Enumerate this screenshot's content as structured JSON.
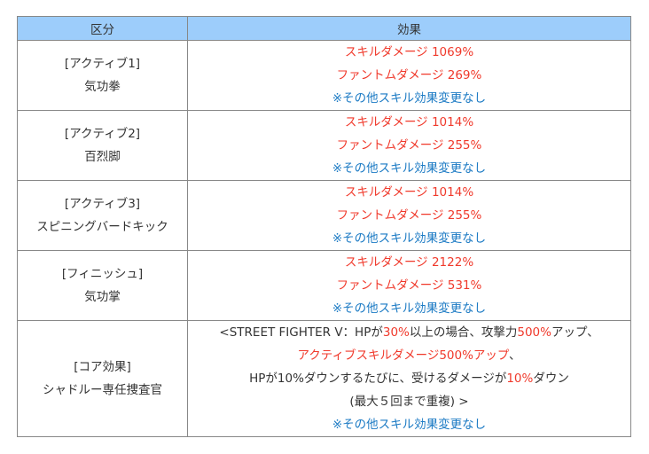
{
  "header": {
    "col1": "区分",
    "col2": "効果"
  },
  "colors": {
    "header_bg": "#9dcdfb",
    "red": "#f0392b",
    "blue": "#1b7ac4"
  },
  "rows": [
    {
      "cat1": "[アクティブ1]",
      "cat2": "気功拳",
      "skill": "スキルダメージ 1069%",
      "phantom": "ファントムダメージ 269%",
      "note": "※その他スキル効果変更なし"
    },
    {
      "cat1": "[アクティブ2]",
      "cat2": "百烈脚",
      "skill": "スキルダメージ 1014%",
      "phantom": "ファントムダメージ 255%",
      "note": "※その他スキル効果変更なし"
    },
    {
      "cat1": "[アクティブ3]",
      "cat2": "スピニングバードキック",
      "skill": "スキルダメージ 1014%",
      "phantom": "ファントムダメージ 255%",
      "note": "※その他スキル効果変更なし"
    },
    {
      "cat1": "[フィニッシュ]",
      "cat2": "気功掌",
      "skill": "スキルダメージ 2122%",
      "phantom": "ファントムダメージ 531%",
      "note": "※その他スキル効果変更なし"
    }
  ],
  "core": {
    "cat1": "[コア効果]",
    "cat2": "シャドルー専任捜査官",
    "l1": [
      "<STREET FIGHTER V：HPが",
      "30%",
      "以上の場合、攻撃力",
      "500%",
      "アップ、"
    ],
    "l2": "アクティブスキルダメージ500%アップ",
    "l2b": "、",
    "l3": [
      "HPが10%ダウンするたびに、受けるダメージが",
      "10%",
      "ダウン"
    ],
    "l4": "(最大５回まで重複) >",
    "note": "※その他スキル効果変更なし"
  }
}
